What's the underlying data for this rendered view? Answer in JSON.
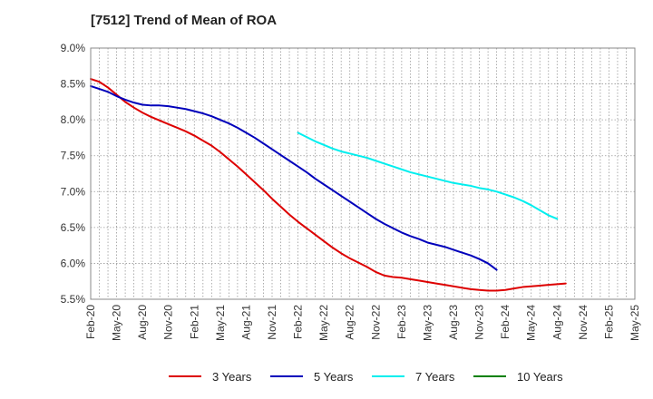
{
  "chart_data": {
    "type": "line",
    "title": "[7512]  Trend of Mean of ROA",
    "xlabel": "",
    "ylabel": "",
    "ylim": [
      5.5,
      9.0
    ],
    "x_tick_labels": [
      "Feb-20",
      "May-20",
      "Aug-20",
      "Nov-20",
      "Feb-21",
      "May-21",
      "Aug-21",
      "Nov-21",
      "Feb-22",
      "May-22",
      "Aug-22",
      "Nov-22",
      "Feb-23",
      "May-23",
      "Aug-23",
      "Nov-23",
      "Feb-24",
      "May-24",
      "Aug-24",
      "Nov-24",
      "Feb-25",
      "May-25"
    ],
    "y_tick_labels": [
      "5.5%",
      "6.0%",
      "6.5%",
      "7.0%",
      "7.5%",
      "8.0%",
      "8.5%",
      "9.0%"
    ],
    "y_ticks": [
      5.5,
      6.0,
      6.5,
      7.0,
      7.5,
      8.0,
      8.5,
      9.0
    ],
    "series": [
      {
        "name": "3 Years",
        "color": "#dd0000",
        "start_month": 0,
        "values": [
          8.57,
          8.53,
          8.45,
          8.35,
          8.25,
          8.17,
          8.1,
          8.04,
          7.99,
          7.94,
          7.89,
          7.84,
          7.78,
          7.71,
          7.64,
          7.55,
          7.45,
          7.35,
          7.24,
          7.13,
          7.02,
          6.9,
          6.79,
          6.68,
          6.58,
          6.49,
          6.4,
          6.31,
          6.22,
          6.14,
          6.07,
          6.01,
          5.95,
          5.88,
          5.83,
          5.81,
          5.8,
          5.78,
          5.76,
          5.74,
          5.72,
          5.7,
          5.68,
          5.66,
          5.64,
          5.63,
          5.62,
          5.62,
          5.63,
          5.65,
          5.67,
          5.68,
          5.69,
          5.7,
          5.71,
          5.72
        ]
      },
      {
        "name": "5 Years",
        "color": "#0000bb",
        "start_month": 0,
        "values": [
          8.47,
          8.43,
          8.39,
          8.33,
          8.28,
          8.24,
          8.21,
          8.2,
          8.2,
          8.19,
          8.17,
          8.15,
          8.12,
          8.09,
          8.05,
          8.0,
          7.95,
          7.89,
          7.82,
          7.75,
          7.67,
          7.59,
          7.51,
          7.43,
          7.35,
          7.27,
          7.18,
          7.1,
          7.02,
          6.94,
          6.86,
          6.78,
          6.7,
          6.62,
          6.55,
          6.49,
          6.43,
          6.38,
          6.34,
          6.29,
          6.26,
          6.23,
          6.19,
          6.15,
          6.11,
          6.06,
          6.0,
          5.91
        ]
      },
      {
        "name": "7 Years",
        "color": "#00eeee",
        "start_month": 24,
        "values": [
          7.82,
          7.76,
          7.7,
          7.65,
          7.6,
          7.56,
          7.53,
          7.5,
          7.47,
          7.43,
          7.39,
          7.35,
          7.31,
          7.27,
          7.24,
          7.21,
          7.18,
          7.15,
          7.12,
          7.1,
          7.08,
          7.05,
          7.03,
          7.0,
          6.96,
          6.92,
          6.87,
          6.81,
          6.74,
          6.67,
          6.62
        ]
      },
      {
        "name": "10 Years",
        "color": "#008000",
        "start_month": 0,
        "values": []
      }
    ]
  }
}
